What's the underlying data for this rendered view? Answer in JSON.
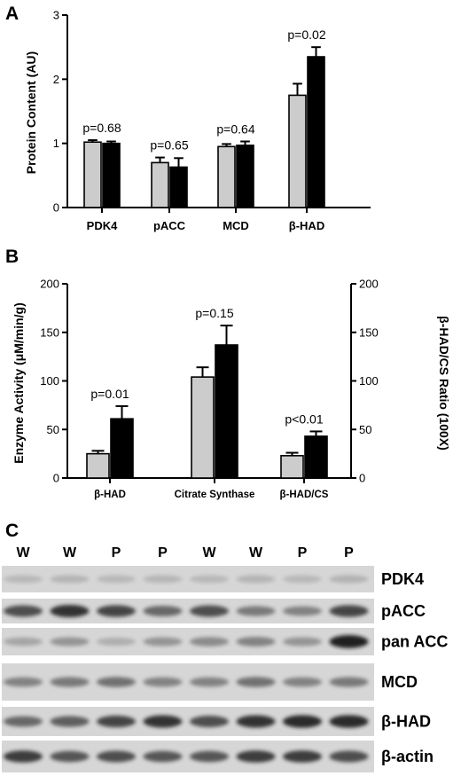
{
  "panels": {
    "a_label": "A",
    "b_label": "B",
    "c_label": "C"
  },
  "chart_data": [
    {
      "panel": "A",
      "type": "bar",
      "ylabel": "Protein Content (AU)",
      "ylim": [
        0,
        3
      ],
      "yticks": [
        0,
        1,
        2,
        3
      ],
      "categories": [
        "PDK4",
        "pACC",
        "MCD",
        "β-HAD"
      ],
      "series": [
        {
          "color": "#cccccc",
          "values": [
            1.02,
            0.7,
            0.95,
            1.75
          ],
          "errors": [
            0.03,
            0.08,
            0.04,
            0.18
          ]
        },
        {
          "color": "#000000",
          "values": [
            1.0,
            0.63,
            0.97,
            2.35
          ],
          "errors": [
            0.03,
            0.14,
            0.06,
            0.15
          ]
        }
      ],
      "annotations": [
        "p=0.68",
        "p=0.65",
        "p=0.64",
        "p=0.02"
      ],
      "grid": false
    },
    {
      "panel": "B",
      "type": "bar",
      "ylabel": "Enzyme Activity (μM/min/g)",
      "ylabel_right": "β-HAD/CS Ratio (100X)",
      "ylim": [
        0,
        200
      ],
      "yticks": [
        0,
        50,
        100,
        150,
        200
      ],
      "ylim_right": [
        0,
        200
      ],
      "yticks_right": [
        0,
        50,
        100,
        150,
        200
      ],
      "categories": [
        "β-HAD",
        "Citrate Synthase",
        "β-HAD/CS"
      ],
      "series": [
        {
          "color": "#cccccc",
          "values": [
            25,
            104,
            23
          ],
          "errors": [
            3,
            10,
            3
          ]
        },
        {
          "color": "#000000",
          "values": [
            61,
            137,
            43
          ],
          "errors": [
            13,
            20,
            5
          ]
        }
      ],
      "annotations": [
        "p=0.01",
        "p=0.15",
        "p<0.01"
      ],
      "grid": false
    }
  ],
  "blot": {
    "lanes": [
      "W",
      "W",
      "P",
      "P",
      "W",
      "W",
      "P",
      "P"
    ],
    "rows": [
      {
        "protein": "PDK4",
        "intensity": [
          0.1,
          0.12,
          0.1,
          0.11,
          0.1,
          0.12,
          0.1,
          0.13
        ]
      },
      {
        "protein": "pACC",
        "intensity": [
          0.7,
          0.85,
          0.75,
          0.55,
          0.7,
          0.45,
          0.4,
          0.75
        ]
      },
      {
        "protein": "pan ACC",
        "intensity": [
          0.2,
          0.3,
          0.15,
          0.3,
          0.35,
          0.4,
          0.3,
          0.95
        ]
      },
      {
        "protein": "MCD",
        "intensity": [
          0.4,
          0.45,
          0.5,
          0.4,
          0.4,
          0.5,
          0.4,
          0.45
        ]
      },
      {
        "protein": "β-HAD",
        "intensity": [
          0.55,
          0.6,
          0.75,
          0.85,
          0.7,
          0.85,
          0.9,
          0.9
        ]
      },
      {
        "protein": "β-actin",
        "intensity": [
          0.8,
          0.65,
          0.7,
          0.65,
          0.65,
          0.8,
          0.8,
          0.7
        ]
      }
    ]
  }
}
